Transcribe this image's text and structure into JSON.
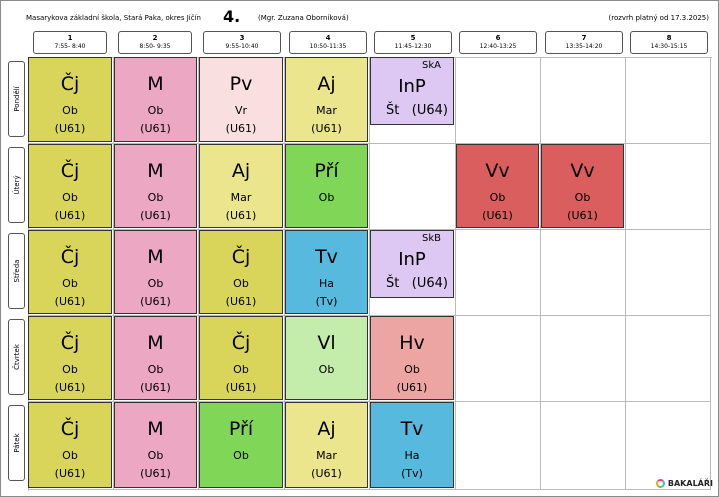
{
  "header": {
    "school": "Masarykova základní škola, Stará Paka, okres Jičín",
    "class": "4.",
    "teacher": "(Mgr. Zuzana Oborníková)",
    "valid": "(rozvrh platný od 17.3.2025)"
  },
  "periods": [
    {
      "num": "1",
      "time": "7:55- 8:40"
    },
    {
      "num": "2",
      "time": "8:50- 9:35"
    },
    {
      "num": "3",
      "time": "9:55-10:40"
    },
    {
      "num": "4",
      "time": "10:50-11:35"
    },
    {
      "num": "5",
      "time": "11:45-12:30"
    },
    {
      "num": "6",
      "time": "12:40-13:25"
    },
    {
      "num": "7",
      "time": "13:35-14:20"
    },
    {
      "num": "8",
      "time": "14:30-15:15"
    }
  ],
  "days": [
    "Pondělí",
    "Úterý",
    "Středa",
    "Čtvrtek",
    "Pátek"
  ],
  "colors": {
    "cj": "#d8d55a",
    "m": "#eca7c3",
    "pv": "#f9dfdf",
    "aj": "#ebe58e",
    "pri": "#80d656",
    "tv": "#56b9dd",
    "vl": "#c4ecab",
    "hv": "#eca5a2",
    "vv": "#db5e5e",
    "inp": "#dcc8f3"
  },
  "lessons": {
    "mon1": {
      "subject": "Čj",
      "teacher": "Ob",
      "room": "(U61)"
    },
    "mon2": {
      "subject": "M",
      "teacher": "Ob",
      "room": "(U61)"
    },
    "mon3": {
      "subject": "Pv",
      "teacher": "Vr",
      "room": "(U61)"
    },
    "mon4": {
      "subject": "Aj",
      "teacher": "Mar",
      "room": "(U61)"
    },
    "mon5": {
      "group": "SkA",
      "subject": "InP",
      "teacher": "Št",
      "room": "(U64)"
    },
    "tue1": {
      "subject": "Čj",
      "teacher": "Ob",
      "room": "(U61)"
    },
    "tue2": {
      "subject": "M",
      "teacher": "Ob",
      "room": "(U61)"
    },
    "tue3": {
      "subject": "Aj",
      "teacher": "Mar",
      "room": "(U61)"
    },
    "tue4": {
      "subject": "Pří",
      "teacher": "Ob",
      "room": ""
    },
    "tue6": {
      "subject": "Vv",
      "teacher": "Ob",
      "room": "(U61)"
    },
    "tue7": {
      "subject": "Vv",
      "teacher": "Ob",
      "room": "(U61)"
    },
    "wed1": {
      "subject": "Čj",
      "teacher": "Ob",
      "room": "(U61)"
    },
    "wed2": {
      "subject": "M",
      "teacher": "Ob",
      "room": "(U61)"
    },
    "wed3": {
      "subject": "Čj",
      "teacher": "Ob",
      "room": "(U61)"
    },
    "wed4": {
      "subject": "Tv",
      "teacher": "Ha",
      "room": "(Tv)"
    },
    "wed5": {
      "group": "SkB",
      "subject": "InP",
      "teacher": "Št",
      "room": "(U64)"
    },
    "thu1": {
      "subject": "Čj",
      "teacher": "Ob",
      "room": "(U61)"
    },
    "thu2": {
      "subject": "M",
      "teacher": "Ob",
      "room": "(U61)"
    },
    "thu3": {
      "subject": "Čj",
      "teacher": "Ob",
      "room": "(U61)"
    },
    "thu4": {
      "subject": "Vl",
      "teacher": "Ob",
      "room": ""
    },
    "thu5": {
      "subject": "Hv",
      "teacher": "Ob",
      "room": "(U61)"
    },
    "fri1": {
      "subject": "Čj",
      "teacher": "Ob",
      "room": "(U61)"
    },
    "fri2": {
      "subject": "M",
      "teacher": "Ob",
      "room": "(U61)"
    },
    "fri3": {
      "subject": "Pří",
      "teacher": "Ob",
      "room": ""
    },
    "fri4": {
      "subject": "Aj",
      "teacher": "Mar",
      "room": "(U61)"
    },
    "fri5": {
      "subject": "Tv",
      "teacher": "Ha",
      "room": "(Tv)"
    }
  },
  "footer": {
    "logo_text": "BAKALÁŘI",
    "logo_icon": "bakalari-logo-icon"
  }
}
